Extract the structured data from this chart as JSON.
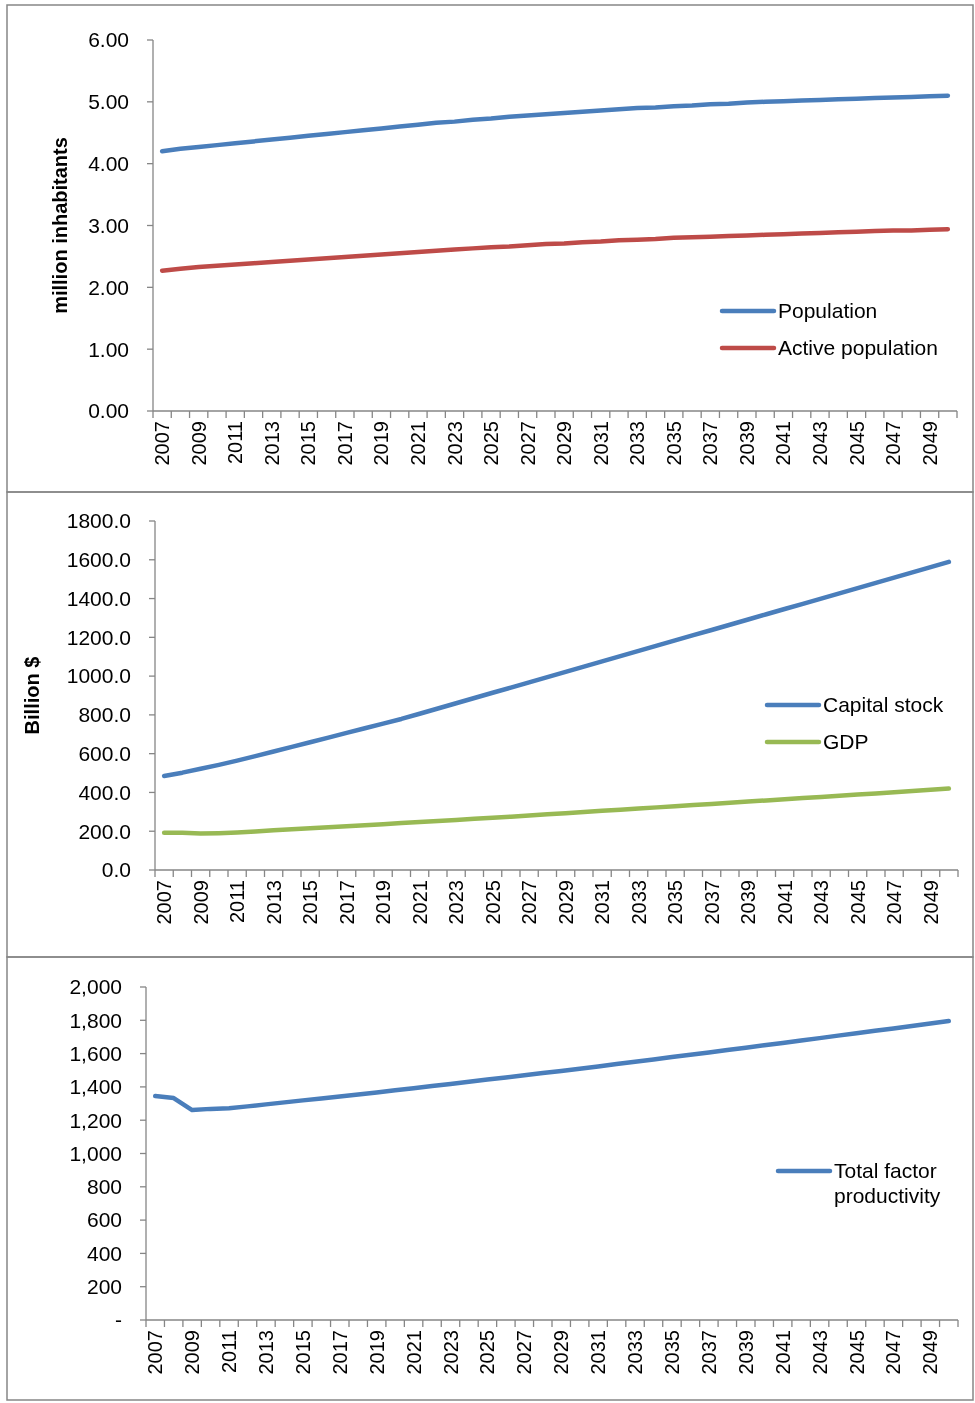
{
  "chart_data": [
    {
      "type": "line",
      "ylabel": "million inhabitants",
      "legend": "right",
      "grid": false,
      "marker": "none",
      "categories": [
        "2007",
        null,
        "2009",
        null,
        "2011",
        null,
        "2013",
        null,
        "2015",
        null,
        "2017",
        null,
        "2019",
        null,
        "2021",
        null,
        "2023",
        null,
        "2025",
        null,
        "2027",
        null,
        "2029",
        null,
        "2031",
        null,
        "2033",
        null,
        "2035",
        null,
        "2037",
        null,
        "2039",
        null,
        "2041",
        null,
        "2043",
        null,
        "2045",
        null,
        "2047",
        null,
        "2049",
        null
      ],
      "ylim": [
        0,
        6
      ],
      "yticks": [
        {
          "value": 0,
          "label": "0.00"
        },
        {
          "value": 1,
          "label": "1.00"
        },
        {
          "value": 2,
          "label": "2.00"
        },
        {
          "value": 3,
          "label": "3.00"
        },
        {
          "value": 4,
          "label": "4.00"
        },
        {
          "value": 5,
          "label": "5.00"
        },
        {
          "value": 6,
          "label": "6.00"
        }
      ],
      "series": [
        {
          "name": "Population",
          "color": "#4a7ebb",
          "values": [
            4.2,
            4.24,
            4.27,
            4.3,
            4.33,
            4.36,
            4.39,
            4.42,
            4.45,
            4.48,
            4.51,
            4.54,
            4.57,
            4.6,
            4.63,
            4.66,
            4.68,
            4.71,
            4.73,
            4.76,
            4.78,
            4.8,
            4.82,
            4.84,
            4.86,
            4.88,
            4.9,
            4.91,
            4.93,
            4.94,
            4.96,
            4.97,
            4.99,
            5.0,
            5.01,
            5.02,
            5.03,
            5.04,
            5.05,
            5.06,
            5.07,
            5.08,
            5.09,
            5.1
          ]
        },
        {
          "name": "Active population",
          "color": "#be4b48",
          "values": [
            2.27,
            2.3,
            2.33,
            2.35,
            2.37,
            2.39,
            2.41,
            2.43,
            2.45,
            2.47,
            2.49,
            2.51,
            2.53,
            2.55,
            2.57,
            2.59,
            2.61,
            2.63,
            2.65,
            2.66,
            2.68,
            2.7,
            2.71,
            2.73,
            2.74,
            2.76,
            2.77,
            2.78,
            2.8,
            2.81,
            2.82,
            2.83,
            2.84,
            2.85,
            2.86,
            2.87,
            2.88,
            2.89,
            2.9,
            2.91,
            2.92,
            2.92,
            2.93,
            2.94
          ]
        }
      ]
    },
    {
      "type": "line",
      "ylabel": "Billion $",
      "legend": "right",
      "grid": false,
      "marker": "none",
      "categories": [
        "2007",
        null,
        "2009",
        null,
        "2011",
        null,
        "2013",
        null,
        "2015",
        null,
        "2017",
        null,
        "2019",
        null,
        "2021",
        null,
        "2023",
        null,
        "2025",
        null,
        "2027",
        null,
        "2029",
        null,
        "2031",
        null,
        "2033",
        null,
        "2035",
        null,
        "2037",
        null,
        "2039",
        null,
        "2041",
        null,
        "2043",
        null,
        "2045",
        null,
        "2047",
        null,
        "2049",
        null
      ],
      "ylim": [
        0,
        1800
      ],
      "yticks": [
        {
          "value": 0,
          "label": "0.0"
        },
        {
          "value": 200,
          "label": "200.0"
        },
        {
          "value": 400,
          "label": "400.0"
        },
        {
          "value": 600,
          "label": "600.0"
        },
        {
          "value": 800,
          "label": "800.0"
        },
        {
          "value": 1000,
          "label": "1000.0"
        },
        {
          "value": 1200,
          "label": "1200.0"
        },
        {
          "value": 1400,
          "label": "1400.0"
        },
        {
          "value": 1600,
          "label": "1600.0"
        },
        {
          "value": 1800,
          "label": "1800.0"
        }
      ],
      "series": [
        {
          "name": "Capital stock",
          "color": "#4a7ebb",
          "values": [
            485,
            502,
            522,
            542,
            564,
            587,
            611,
            635,
            659,
            683,
            707,
            731,
            755,
            779,
            806,
            833,
            860,
            887,
            914,
            941,
            968,
            995,
            1022,
            1049,
            1076,
            1103,
            1130,
            1157,
            1184,
            1211,
            1238,
            1265,
            1292,
            1319,
            1346,
            1373,
            1400,
            1427,
            1454,
            1481,
            1508,
            1535,
            1562,
            1589
          ]
        },
        {
          "name": "GDP",
          "color": "#98b954",
          "values": [
            192,
            192,
            188,
            190,
            194,
            199,
            205,
            210,
            215,
            220,
            226,
            231,
            236,
            242,
            247,
            253,
            258,
            264,
            270,
            275,
            281,
            287,
            293,
            299,
            305,
            311,
            317,
            323,
            329,
            335,
            341,
            347,
            353,
            359,
            365,
            371,
            377,
            383,
            389,
            395,
            401,
            407,
            414,
            420
          ]
        }
      ]
    },
    {
      "type": "line",
      "legend": "right",
      "grid": false,
      "marker": "none",
      "categories": [
        "2007",
        null,
        "2009",
        null,
        "2011",
        null,
        "2013",
        null,
        "2015",
        null,
        "2017",
        null,
        "2019",
        null,
        "2021",
        null,
        "2023",
        null,
        "2025",
        null,
        "2027",
        null,
        "2029",
        null,
        "2031",
        null,
        "2033",
        null,
        "2035",
        null,
        "2037",
        null,
        "2039",
        null,
        "2041",
        null,
        "2043",
        null,
        "2045",
        null,
        "2047",
        null,
        "2049",
        null
      ],
      "ylim": [
        0,
        2000
      ],
      "yticks": [
        {
          "value": 0,
          "label": "-"
        },
        200,
        400,
        600,
        800,
        {
          "value": 1000,
          "label": "1,000"
        },
        {
          "value": 1200,
          "label": "1,200"
        },
        {
          "value": 1400,
          "label": "1,400"
        },
        {
          "value": 1600,
          "label": "1,600"
        },
        {
          "value": 1800,
          "label": "1,800"
        },
        {
          "value": 2000,
          "label": "2,000"
        }
      ],
      "series": [
        {
          "name": "Total factor productivity",
          "color": "#4a7ebb",
          "values": [
            1345,
            1333,
            1261,
            1268,
            1272,
            1283,
            1295,
            1307,
            1319,
            1331,
            1343,
            1355,
            1367,
            1380,
            1392,
            1405,
            1418,
            1431,
            1444,
            1457,
            1470,
            1483,
            1496,
            1509,
            1523,
            1537,
            1551,
            1565,
            1579,
            1593,
            1607,
            1621,
            1635,
            1650,
            1664,
            1679,
            1693,
            1708,
            1722,
            1737,
            1751,
            1766,
            1781,
            1796
          ]
        }
      ]
    }
  ]
}
